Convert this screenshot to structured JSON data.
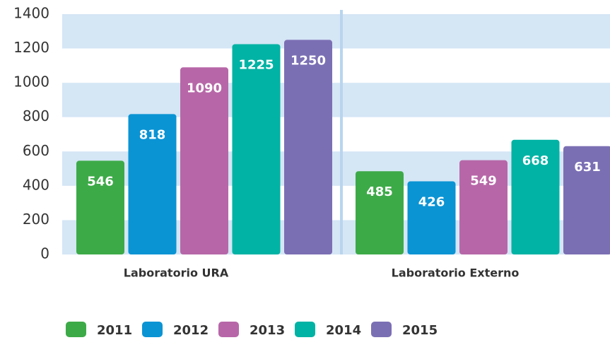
{
  "chart_data": {
    "type": "bar",
    "categories": [
      "Laboratorio URA",
      "Laboratorio Externo"
    ],
    "series": [
      {
        "name": "2011",
        "color": "#3daa48",
        "values": [
          546,
          485
        ]
      },
      {
        "name": "2012",
        "color": "#0a94d4",
        "values": [
          818,
          426
        ]
      },
      {
        "name": "2013",
        "color": "#b767a8",
        "values": [
          1090,
          549
        ]
      },
      {
        "name": "2014",
        "color": "#00b3a4",
        "values": [
          1225,
          668
        ]
      },
      {
        "name": "2015",
        "color": "#7b6fb4",
        "values": [
          1250,
          631
        ]
      }
    ],
    "ylim": [
      0,
      1400
    ],
    "yticks": [
      0,
      200,
      400,
      600,
      800,
      1000,
      1200,
      1400
    ],
    "grid": true,
    "legend": "bottom"
  }
}
